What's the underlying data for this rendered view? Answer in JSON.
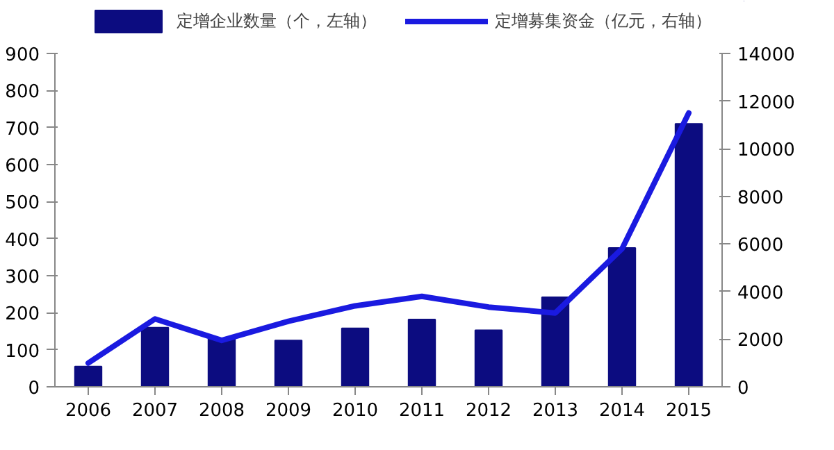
{
  "chart_data": {
    "type": "bar",
    "categories": [
      "2006",
      "2007",
      "2008",
      "2009",
      "2010",
      "2011",
      "2012",
      "2013",
      "2014",
      "2015"
    ],
    "series": [
      {
        "name": "定增企业数量（个，左轴）",
        "color": "#0c0c80",
        "values": [
          55,
          160,
          130,
          125,
          158,
          182,
          153,
          242,
          375,
          710
        ]
      },
      {
        "name": "定增募集资金（亿元，右轴）",
        "color": "#1a1ae0",
        "type": "line",
        "axis": "y2",
        "values": [
          1000,
          2850,
          1950,
          2750,
          3400,
          3800,
          3350,
          3100,
          5800,
          11500
        ]
      }
    ],
    "ylim": [
      0,
      900
    ],
    "yticks": [
      0,
      100,
      200,
      300,
      400,
      500,
      600,
      700,
      800,
      900
    ],
    "y2lim": [
      0,
      14000
    ],
    "y2ticks": [
      0,
      2000,
      4000,
      6000,
      8000,
      10000,
      12000,
      14000
    ],
    "grid": false,
    "legend": "top"
  }
}
